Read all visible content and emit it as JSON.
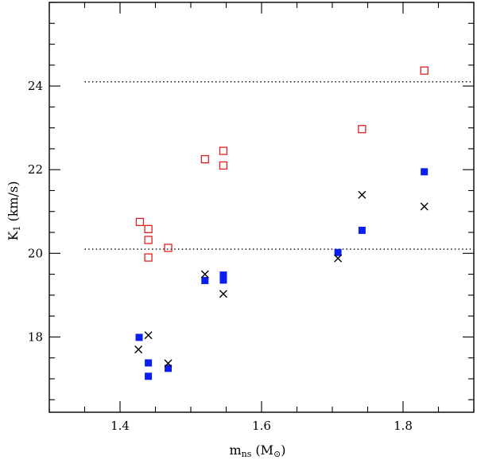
{
  "chart_data": {
    "type": "scatter",
    "title": "",
    "xlabel": {
      "main": "m",
      "sub": "ns",
      "unit_open": "(M",
      "unit_symbol": "⊙",
      "unit_close": ")"
    },
    "ylabel": {
      "main": "K",
      "sub": "1",
      "unit": "(km/s)"
    },
    "xlim": [
      1.3,
      1.9
    ],
    "ylim": [
      16.2,
      26.0
    ],
    "x_major_ticks": [
      1.4,
      1.6,
      1.8
    ],
    "x_tick_labels": [
      "1.4",
      "1.6",
      "1.8"
    ],
    "y_major_ticks": [
      18,
      20,
      22,
      24
    ],
    "y_tick_labels": [
      "18",
      "20",
      "22",
      "24"
    ],
    "reference_lines": [
      {
        "y": 24.1,
        "x_start": 1.35,
        "style": "dotted"
      },
      {
        "y": 20.1,
        "x_start": 1.35,
        "style": "dotted"
      }
    ],
    "series": [
      {
        "name": "open-squares",
        "marker": "open-square",
        "color": "#e02020",
        "points": [
          {
            "x": 1.428,
            "y": 20.75
          },
          {
            "x": 1.44,
            "y": 20.58
          },
          {
            "x": 1.44,
            "y": 20.32
          },
          {
            "x": 1.44,
            "y": 19.9
          },
          {
            "x": 1.468,
            "y": 20.13
          },
          {
            "x": 1.52,
            "y": 22.25
          },
          {
            "x": 1.546,
            "y": 22.45
          },
          {
            "x": 1.546,
            "y": 22.1
          },
          {
            "x": 1.742,
            "y": 22.97
          },
          {
            "x": 1.83,
            "y": 24.37
          }
        ]
      },
      {
        "name": "filled-squares",
        "marker": "filled-square",
        "color": "#0a1ef0",
        "points": [
          {
            "x": 1.427,
            "y": 17.99
          },
          {
            "x": 1.44,
            "y": 17.38
          },
          {
            "x": 1.44,
            "y": 17.06
          },
          {
            "x": 1.468,
            "y": 17.25
          },
          {
            "x": 1.52,
            "y": 19.35
          },
          {
            "x": 1.546,
            "y": 19.48
          },
          {
            "x": 1.546,
            "y": 19.36
          },
          {
            "x": 1.708,
            "y": 20.02
          },
          {
            "x": 1.742,
            "y": 20.55
          },
          {
            "x": 1.83,
            "y": 21.95
          }
        ]
      },
      {
        "name": "crosses",
        "marker": "cross",
        "color": "#000000",
        "points": [
          {
            "x": 1.426,
            "y": 17.7
          },
          {
            "x": 1.44,
            "y": 18.04
          },
          {
            "x": 1.468,
            "y": 17.37
          },
          {
            "x": 1.52,
            "y": 19.5
          },
          {
            "x": 1.546,
            "y": 19.03
          },
          {
            "x": 1.708,
            "y": 19.88
          },
          {
            "x": 1.742,
            "y": 21.4
          },
          {
            "x": 1.83,
            "y": 21.12
          }
        ]
      }
    ]
  }
}
